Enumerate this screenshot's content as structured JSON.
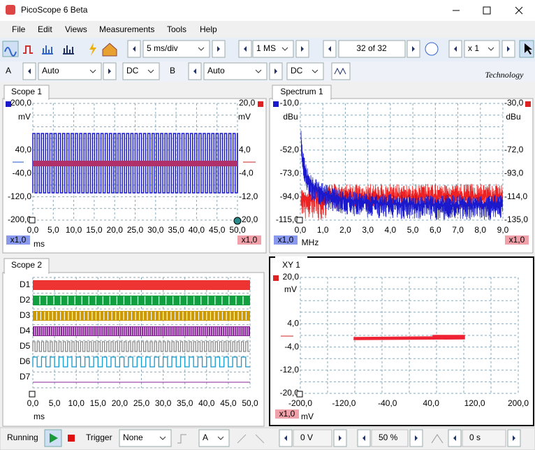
{
  "window": {
    "title": "PicoScope 6 Beta"
  },
  "menu": [
    "File",
    "Edit",
    "Views",
    "Measurements",
    "Tools",
    "Help"
  ],
  "toolbar": {
    "timebase": "5 ms/div",
    "samples": "1 MS",
    "buffer": "32 of 32",
    "zoom": "x 1"
  },
  "channel_bar": {
    "a": {
      "label": "A",
      "range": "Auto",
      "coupling": "DC"
    },
    "b": {
      "label": "B",
      "range": "Auto",
      "coupling": "DC"
    },
    "logo": "Technology"
  },
  "scope1": {
    "tab": "Scope 1",
    "left_unit": "mV",
    "right_unit": "mV",
    "left_ticks": [
      "200,0",
      "40,0",
      "-40,0",
      "-120,0",
      "-200,0"
    ],
    "right_ticks": [
      "20,0",
      "4,0",
      "-4,0",
      "-12,0",
      "-20,0"
    ],
    "x_ticks": [
      "0,0",
      "5,0",
      "10,0",
      "15,0",
      "20,0",
      "25,0",
      "30,0",
      "35,0",
      "40,0",
      "45,0",
      "50,0"
    ],
    "x_unit": "ms",
    "left_scale": "x1,0",
    "right_scale": "x1,0"
  },
  "spectrum1": {
    "tab": "Spectrum 1",
    "left_unit": "dBu",
    "right_unit": "dBu",
    "left_ticks": [
      "-10,0",
      "-52,0",
      "-73,0",
      "-94,0",
      "-115,0"
    ],
    "right_ticks": [
      "-30,0",
      "-72,0",
      "-93,0",
      "-114,0",
      "-135,0"
    ],
    "x_ticks": [
      "0,0",
      "1,0",
      "2,0",
      "3,0",
      "4,0",
      "5,0",
      "6,0",
      "7,0",
      "8,0",
      "9,0"
    ],
    "x_unit": "MHz",
    "left_scale": "x1,0",
    "right_scale": "x1,0"
  },
  "scope2": {
    "tab": "Scope 2",
    "channels": [
      "D1",
      "D2",
      "D3",
      "D4",
      "D5",
      "D6",
      "D7"
    ],
    "x_ticks": [
      "0,0",
      "5,0",
      "10,0",
      "15,0",
      "20,0",
      "25,0",
      "30,0",
      "35,0",
      "40,0",
      "45,0",
      "50,0"
    ],
    "x_unit": "ms"
  },
  "xy1": {
    "tab": "XY 1",
    "y_unit": "mV",
    "y_ticks": [
      "20,0",
      "4,0",
      "-4,0",
      "-12,0",
      "-20,0"
    ],
    "x_ticks": [
      "-200,0",
      "-120,0",
      "-40,0",
      "40,0",
      "120,0",
      "200,0"
    ],
    "x_unit": "mV",
    "scale": "x1,0"
  },
  "status": {
    "state": "Running",
    "trigger_label": "Trigger",
    "trigger_mode": "None",
    "trigger_source": "A",
    "threshold": "0 V",
    "pre_trigger": "50 %",
    "delay": "0 s"
  }
}
